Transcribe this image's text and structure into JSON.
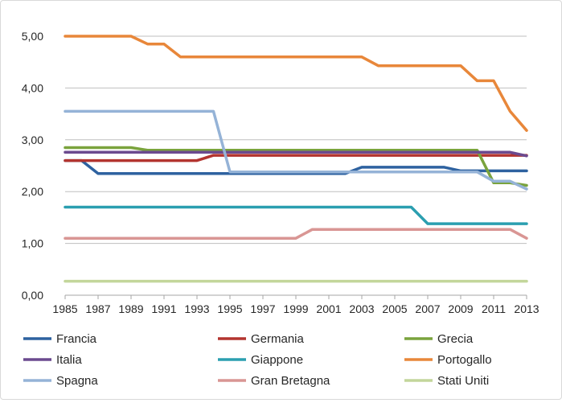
{
  "chart_data": {
    "type": "line",
    "title": "",
    "xlabel": "",
    "ylabel": "",
    "ylim": [
      0,
      5
    ],
    "y_ticks": [
      "0,00",
      "1,00",
      "2,00",
      "3,00",
      "4,00",
      "5,00"
    ],
    "x": [
      1985,
      1986,
      1987,
      1988,
      1989,
      1990,
      1991,
      1992,
      1993,
      1994,
      1995,
      1996,
      1997,
      1998,
      1999,
      2000,
      2001,
      2002,
      2003,
      2004,
      2005,
      2006,
      2007,
      2008,
      2009,
      2010,
      2011,
      2012,
      2013
    ],
    "x_tick_labels": [
      "1985",
      "1987",
      "1989",
      "1991",
      "1993",
      "1995",
      "1997",
      "1999",
      "2001",
      "2003",
      "2005",
      "2007",
      "2009",
      "2011",
      "2013"
    ],
    "grid": "horizontal",
    "legend_position": "bottom",
    "series": [
      {
        "name": "Francia",
        "color": "#2e62a0",
        "values": [
          2.6,
          2.6,
          2.35,
          2.35,
          2.35,
          2.35,
          2.35,
          2.35,
          2.35,
          2.35,
          2.35,
          2.35,
          2.35,
          2.35,
          2.35,
          2.35,
          2.35,
          2.35,
          2.47,
          2.47,
          2.47,
          2.47,
          2.47,
          2.47,
          2.4,
          2.4,
          2.4,
          2.4,
          2.4
        ]
      },
      {
        "name": "Germania",
        "color": "#b3342f",
        "values": [
          2.6,
          2.6,
          2.6,
          2.6,
          2.6,
          2.6,
          2.6,
          2.6,
          2.6,
          2.7,
          2.7,
          2.7,
          2.7,
          2.7,
          2.7,
          2.7,
          2.7,
          2.7,
          2.7,
          2.7,
          2.7,
          2.7,
          2.7,
          2.7,
          2.7,
          2.7,
          2.7,
          2.7,
          2.7
        ]
      },
      {
        "name": "Grecia",
        "color": "#7aa33d",
        "values": [
          2.85,
          2.85,
          2.85,
          2.85,
          2.85,
          2.8,
          2.8,
          2.8,
          2.8,
          2.8,
          2.8,
          2.8,
          2.8,
          2.8,
          2.8,
          2.8,
          2.8,
          2.8,
          2.8,
          2.8,
          2.8,
          2.8,
          2.8,
          2.8,
          2.8,
          2.8,
          2.17,
          2.17,
          2.12
        ]
      },
      {
        "name": "Italia",
        "color": "#6b4a8f",
        "values": [
          2.76,
          2.76,
          2.76,
          2.76,
          2.76,
          2.76,
          2.76,
          2.76,
          2.76,
          2.76,
          2.76,
          2.76,
          2.76,
          2.76,
          2.76,
          2.76,
          2.76,
          2.76,
          2.76,
          2.76,
          2.76,
          2.76,
          2.76,
          2.76,
          2.76,
          2.76,
          2.76,
          2.76,
          2.69
        ]
      },
      {
        "name": "Giappone",
        "color": "#2b9fb0",
        "values": [
          1.7,
          1.7,
          1.7,
          1.7,
          1.7,
          1.7,
          1.7,
          1.7,
          1.7,
          1.7,
          1.7,
          1.7,
          1.7,
          1.7,
          1.7,
          1.7,
          1.7,
          1.7,
          1.7,
          1.7,
          1.7,
          1.7,
          1.38,
          1.38,
          1.38,
          1.38,
          1.38,
          1.38,
          1.38
        ]
      },
      {
        "name": "Portogallo",
        "color": "#e8873a",
        "values": [
          5.0,
          5.0,
          5.0,
          5.0,
          5.0,
          4.85,
          4.85,
          4.6,
          4.6,
          4.6,
          4.6,
          4.6,
          4.6,
          4.6,
          4.6,
          4.6,
          4.6,
          4.6,
          4.6,
          4.43,
          4.43,
          4.43,
          4.43,
          4.43,
          4.43,
          4.14,
          4.14,
          3.55,
          3.18
        ]
      },
      {
        "name": "Spagna",
        "color": "#95b3d7",
        "values": [
          3.55,
          3.55,
          3.55,
          3.55,
          3.55,
          3.55,
          3.55,
          3.55,
          3.55,
          3.55,
          2.38,
          2.38,
          2.38,
          2.38,
          2.38,
          2.38,
          2.38,
          2.38,
          2.38,
          2.38,
          2.38,
          2.38,
          2.38,
          2.38,
          2.38,
          2.38,
          2.2,
          2.2,
          2.05
        ]
      },
      {
        "name": "Gran Bretagna",
        "color": "#d99694",
        "values": [
          1.1,
          1.1,
          1.1,
          1.1,
          1.1,
          1.1,
          1.1,
          1.1,
          1.1,
          1.1,
          1.1,
          1.1,
          1.1,
          1.1,
          1.1,
          1.27,
          1.27,
          1.27,
          1.27,
          1.27,
          1.27,
          1.27,
          1.27,
          1.27,
          1.27,
          1.27,
          1.27,
          1.27,
          1.1
        ]
      },
      {
        "name": "Stati Uniti",
        "color": "#c3d69b",
        "values": [
          0.27,
          0.27,
          0.27,
          0.27,
          0.27,
          0.27,
          0.27,
          0.27,
          0.27,
          0.27,
          0.27,
          0.27,
          0.27,
          0.27,
          0.27,
          0.27,
          0.27,
          0.27,
          0.27,
          0.27,
          0.27,
          0.27,
          0.27,
          0.27,
          0.27,
          0.27,
          0.27,
          0.27,
          0.27
        ]
      }
    ]
  }
}
